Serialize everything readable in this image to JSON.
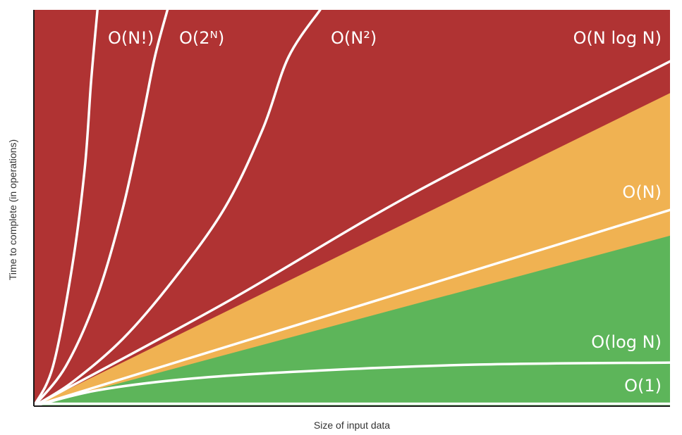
{
  "chart_data": {
    "type": "line",
    "title": "",
    "xlabel": "Size of input data",
    "ylabel": "Time to complete (in operations)",
    "grid": false,
    "legend": "none",
    "axis_ticks": "none",
    "x_range": [
      0,
      1
    ],
    "y_range": [
      0,
      1
    ],
    "region_colors": {
      "red": "#B03333",
      "orange": "#F0B252",
      "green": "#5DB55A"
    },
    "line_color": "#FFFFFF",
    "series": [
      {
        "name": "O(1)",
        "points": [
          [
            0,
            0.006
          ],
          [
            1,
            0.006
          ]
        ]
      },
      {
        "name": "O(log N)",
        "points": [
          [
            0,
            0.0
          ],
          [
            0.1,
            0.04
          ],
          [
            0.25,
            0.07
          ],
          [
            0.45,
            0.09
          ],
          [
            0.7,
            0.105
          ],
          [
            1,
            0.11
          ]
        ]
      },
      {
        "name": "O(N)",
        "points": [
          [
            0,
            0.0
          ],
          [
            1,
            0.495
          ]
        ]
      },
      {
        "name": "O(N log N)",
        "points": [
          [
            0,
            0.0
          ],
          [
            0.3,
            0.26
          ],
          [
            0.6,
            0.54
          ],
          [
            1,
            0.87
          ]
        ]
      },
      {
        "name": "O(N²)",
        "points": [
          [
            0,
            0.0
          ],
          [
            0.06,
            0.06
          ],
          [
            0.14,
            0.17
          ],
          [
            0.22,
            0.32
          ],
          [
            0.3,
            0.5
          ],
          [
            0.36,
            0.7
          ],
          [
            0.4,
            0.88
          ],
          [
            0.45,
            1.0
          ]
        ]
      },
      {
        "name": "O(2ᴺ)",
        "points": [
          [
            0,
            0.0
          ],
          [
            0.05,
            0.1
          ],
          [
            0.1,
            0.28
          ],
          [
            0.14,
            0.5
          ],
          [
            0.17,
            0.72
          ],
          [
            0.19,
            0.88
          ],
          [
            0.21,
            1.0
          ]
        ]
      },
      {
        "name": "O(N!)",
        "points": [
          [
            0,
            0.0
          ],
          [
            0.03,
            0.1
          ],
          [
            0.06,
            0.35
          ],
          [
            0.08,
            0.6
          ],
          [
            0.09,
            0.82
          ],
          [
            0.1,
            1.0
          ]
        ]
      }
    ],
    "regions": [
      {
        "color": "green",
        "from": "O(1)",
        "to": "O(N) lower band",
        "bound_points": [
          [
            0,
            0.0
          ],
          [
            1,
            0.43
          ]
        ]
      },
      {
        "color": "orange",
        "from": "green bound",
        "to": "orange upper band",
        "bound_points": [
          [
            0,
            0.0
          ],
          [
            1,
            0.79
          ]
        ]
      },
      {
        "color": "red",
        "from": "orange upper band",
        "to": "top",
        "bound_points": [
          [
            0,
            0.0
          ],
          [
            1,
            1.0
          ]
        ]
      }
    ],
    "curve_labels": [
      {
        "text": "O(N!)",
        "series": "O(N!)"
      },
      {
        "text": "O(2ᴺ)",
        "series": "O(2ᴺ)"
      },
      {
        "text": "O(N²)",
        "series": "O(N²)"
      },
      {
        "text": "O(N log N)",
        "series": "O(N log N)"
      },
      {
        "text": "O(N)",
        "series": "O(N)"
      },
      {
        "text": "O(log N)",
        "series": "O(log N)"
      },
      {
        "text": "O(1)",
        "series": "O(1)"
      }
    ]
  }
}
